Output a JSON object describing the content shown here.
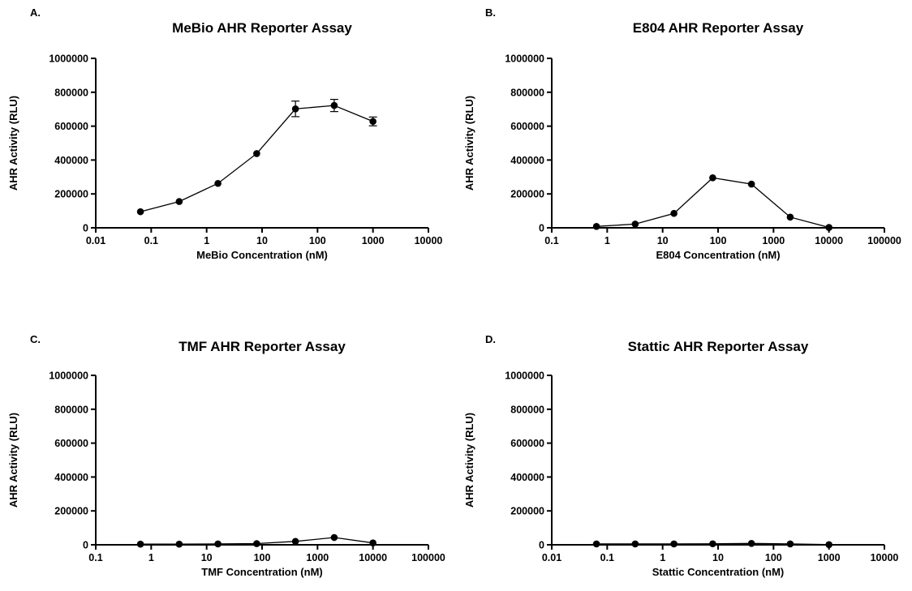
{
  "chart_data": [
    {
      "type": "line",
      "panel_label": "A.",
      "title": "MeBio AHR Reporter Assay",
      "xlabel": "MeBio Concentration (nM)",
      "ylabel": "AHR Activity (RLU)",
      "x_scale": "log",
      "xlim": [
        0.01,
        10000
      ],
      "ylim": [
        0,
        1000000
      ],
      "x_ticks": [
        "0.01",
        "0.1",
        "1",
        "10",
        "100",
        "1000",
        "10000"
      ],
      "y_ticks": [
        "0",
        "200000",
        "400000",
        "600000",
        "800000",
        "1000000"
      ],
      "grid": false,
      "series": [
        {
          "x": [
            0.064,
            0.32,
            1.6,
            8,
            40,
            200,
            1000
          ],
          "values": [
            95000,
            155000,
            262000,
            438000,
            702000,
            722000,
            628000
          ],
          "errors": [
            0,
            0,
            0,
            0,
            46000,
            36000,
            26000
          ]
        }
      ]
    },
    {
      "type": "line",
      "panel_label": "B.",
      "title": "E804 AHR Reporter Assay",
      "xlabel": "E804 Concentration (nM)",
      "ylabel": "AHR Activity (RLU)",
      "x_scale": "log",
      "xlim": [
        0.1,
        100000
      ],
      "ylim": [
        0,
        1000000
      ],
      "x_ticks": [
        "0.1",
        "1",
        "10",
        "100",
        "1000",
        "10000",
        "100000"
      ],
      "y_ticks": [
        "0",
        "200000",
        "400000",
        "600000",
        "800000",
        "1000000"
      ],
      "grid": false,
      "series": [
        {
          "x": [
            0.64,
            3.2,
            16,
            80,
            400,
            2000,
            10000
          ],
          "values": [
            8000,
            22000,
            85000,
            295000,
            258000,
            63000,
            2000
          ],
          "errors": [
            0,
            0,
            0,
            0,
            0,
            0,
            0
          ]
        }
      ]
    },
    {
      "type": "line",
      "panel_label": "C.",
      "title": "TMF AHR Reporter Assay",
      "xlabel": "TMF Concentration (nM)",
      "ylabel": "AHR Activity (RLU)",
      "x_scale": "log",
      "xlim": [
        0.1,
        100000
      ],
      "ylim": [
        0,
        1000000
      ],
      "x_ticks": [
        "0.1",
        "1",
        "10",
        "100",
        "1000",
        "10000",
        "100000"
      ],
      "y_ticks": [
        "0",
        "200000",
        "400000",
        "600000",
        "800000",
        "1000000"
      ],
      "grid": false,
      "series": [
        {
          "x": [
            0.64,
            3.2,
            16,
            80,
            400,
            2000,
            10000
          ],
          "values": [
            4000,
            4000,
            5000,
            7000,
            20000,
            43000,
            11000
          ],
          "errors": [
            0,
            0,
            0,
            0,
            0,
            0,
            0
          ]
        }
      ]
    },
    {
      "type": "line",
      "panel_label": "D.",
      "title": "Stattic AHR Reporter Assay",
      "xlabel": "Stattic Concentration (nM)",
      "ylabel": "AHR Activity (RLU)",
      "x_scale": "log",
      "xlim": [
        0.01,
        10000
      ],
      "ylim": [
        0,
        1000000
      ],
      "x_ticks": [
        "0.01",
        "0.1",
        "1",
        "10",
        "100",
        "1000",
        "10000"
      ],
      "y_ticks": [
        "0",
        "200000",
        "400000",
        "600000",
        "800000",
        "1000000"
      ],
      "grid": false,
      "series": [
        {
          "x": [
            0.064,
            0.32,
            1.6,
            8,
            40,
            200,
            1000
          ],
          "values": [
            5000,
            5000,
            5000,
            6000,
            8000,
            5000,
            1000
          ],
          "errors": [
            0,
            0,
            0,
            0,
            0,
            0,
            0
          ]
        }
      ]
    }
  ]
}
